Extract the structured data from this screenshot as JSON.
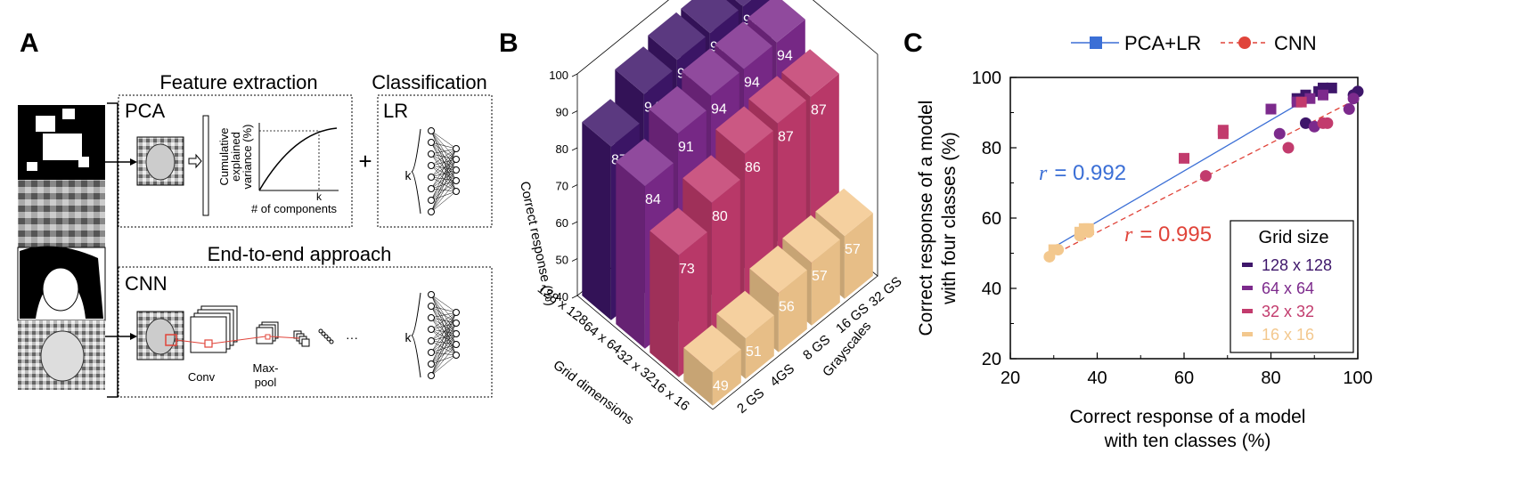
{
  "panels": {
    "a": "A",
    "b": "B",
    "c": "C"
  },
  "panel_a": {
    "feature_title": "Feature extraction",
    "classification_title": "Classification",
    "pca": "PCA",
    "lr": "LR",
    "plus": "+",
    "k": "k",
    "cum_ylabel": [
      "Cumulative",
      "explained",
      "variance (%)"
    ],
    "cum_xlabel": "# of components",
    "cum_k": "k",
    "e2e_title": "End-to-end approach",
    "cnn": "CNN",
    "conv": "Conv",
    "maxpool": [
      "Max-",
      "pool"
    ],
    "ellipsis": "···",
    "colors": {
      "pca": "#3b6fd6",
      "cnn": "#e0443a"
    }
  },
  "chart_data": [
    {
      "type": "bar3d",
      "zlabel": "Correct response (%)",
      "xlabel": "Grid dimensions",
      "ylabel": "Grayscales",
      "grid_dimensions": [
        "128 x 128",
        "64 x 64",
        "32 x 32",
        "16 x 16"
      ],
      "grayscales": [
        "2 GS",
        "4GS",
        "8 GS",
        "16 GS",
        "32 GS"
      ],
      "zticks": [
        "40",
        "50",
        "60",
        "70",
        "80",
        "90",
        "100"
      ],
      "zlim": [
        40,
        100
      ],
      "values": [
        [
          87,
          94,
          96,
          96,
          96
        ],
        [
          84,
          91,
          94,
          94,
          94
        ],
        [
          73,
          80,
          86,
          87,
          87
        ],
        [
          49,
          51,
          56,
          57,
          57
        ]
      ],
      "colors": [
        "#3e166a",
        "#7c2a8c",
        "#c23b6d",
        "#f3c88e"
      ]
    },
    {
      "type": "scatter",
      "xlabel": [
        "Correct response of a model",
        "with ten classes (%)"
      ],
      "ylabel": [
        "Correct response of a model",
        "with four classes (%)"
      ],
      "xlim": [
        20,
        100
      ],
      "ylim": [
        20,
        100
      ],
      "xticks": [
        "20",
        "40",
        "60",
        "80",
        "100"
      ],
      "yticks": [
        "20",
        "40",
        "60",
        "80",
        "100"
      ],
      "legend_top": [
        "PCA+LR",
        "CNN"
      ],
      "legend_title": "Grid size",
      "legend_groups": [
        "128 x 128",
        "64 x 64",
        "32 x 32",
        "16 x 16"
      ],
      "group_colors": [
        "#3e166a",
        "#7c2a8c",
        "#c23b6d",
        "#f3c88e"
      ],
      "annotations": {
        "r_symbol": "r",
        "pca_r": "= 0.992",
        "cnn_r": "= 0.995"
      },
      "line_colors": {
        "pca": "#3b6fd6",
        "cnn": "#e0443a"
      },
      "series": [
        {
          "name": "PCA+LR",
          "marker": "square",
          "points": [
            {
              "x": 94,
              "y": 97,
              "g": 0
            },
            {
              "x": 91,
              "y": 96,
              "g": 0
            },
            {
              "x": 88,
              "y": 95,
              "g": 0
            },
            {
              "x": 86,
              "y": 94,
              "g": 0
            },
            {
              "x": 92,
              "y": 97,
              "g": 0
            },
            {
              "x": 86,
              "y": 93,
              "g": 1
            },
            {
              "x": 80,
              "y": 91,
              "g": 1
            },
            {
              "x": 89,
              "y": 94,
              "g": 1
            },
            {
              "x": 92,
              "y": 95,
              "g": 1
            },
            {
              "x": 69,
              "y": 85,
              "g": 2
            },
            {
              "x": 69,
              "y": 84,
              "g": 2
            },
            {
              "x": 60,
              "y": 77,
              "g": 2
            },
            {
              "x": 87,
              "y": 93,
              "g": 2
            },
            {
              "x": 30,
              "y": 51,
              "g": 3
            },
            {
              "x": 36,
              "y": 56,
              "g": 3
            },
            {
              "x": 37,
              "y": 57,
              "g": 3
            },
            {
              "x": 38,
              "y": 57,
              "g": 3
            }
          ]
        },
        {
          "name": "CNN",
          "marker": "circle",
          "points": [
            {
              "x": 100,
              "y": 96,
              "g": 0
            },
            {
              "x": 99,
              "y": 95,
              "g": 0
            },
            {
              "x": 88,
              "y": 87,
              "g": 0
            },
            {
              "x": 82,
              "y": 84,
              "g": 1
            },
            {
              "x": 90,
              "y": 86,
              "g": 1
            },
            {
              "x": 98,
              "y": 91,
              "g": 1
            },
            {
              "x": 99,
              "y": 94,
              "g": 1
            },
            {
              "x": 65,
              "y": 72,
              "g": 2
            },
            {
              "x": 84,
              "y": 80,
              "g": 2
            },
            {
              "x": 92,
              "y": 87,
              "g": 2
            },
            {
              "x": 93,
              "y": 87,
              "g": 2
            },
            {
              "x": 29,
              "y": 49,
              "g": 3
            },
            {
              "x": 31,
              "y": 51,
              "g": 3
            },
            {
              "x": 36,
              "y": 55,
              "g": 3
            },
            {
              "x": 38,
              "y": 56,
              "g": 3
            }
          ]
        }
      ],
      "fit_lines": {
        "pca": {
          "x": [
            29,
            94
          ],
          "y": [
            51,
            98
          ]
        },
        "cnn": {
          "x": [
            29,
            100
          ],
          "y": [
            49,
            94
          ]
        }
      }
    }
  ]
}
